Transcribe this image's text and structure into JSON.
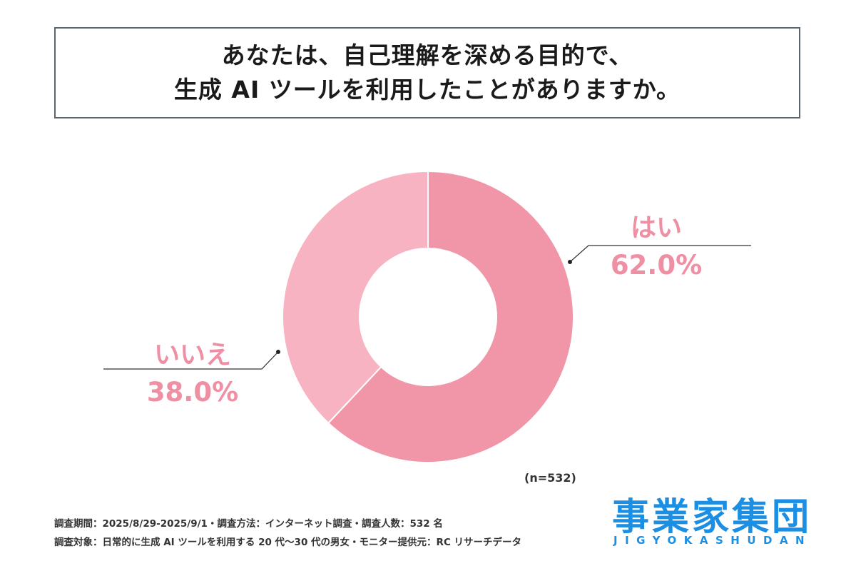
{
  "title": {
    "line1": "あなたは、自己理解を深める目的で、",
    "line2": "生成 AI ツールを利用したことがありますか。"
  },
  "chart_data": {
    "type": "pie",
    "donut": true,
    "start_angle_deg": 0,
    "direction": "clockwise",
    "slices": [
      {
        "label": "はい",
        "value": 62.0,
        "display": "62.0%",
        "color": "#f196a8"
      },
      {
        "label": "いいえ",
        "value": 38.0,
        "display": "38.0%",
        "color": "#f8b3c2"
      }
    ],
    "n_label": "(n=532)"
  },
  "footnotes": {
    "line1": "調査期間：2025/8/29-2025/9/1・調査方法：インターネット調査・調査人数：532 名",
    "line2": "調査対象：日常的に生成 AI ツールを利用する 20 代〜30 代の男女・モニター提供元：RC リサーチデータ"
  },
  "logo": {
    "kanji": "事業家集団",
    "roman": "JIGYOKASHUDAN",
    "color": "#1a8fe3"
  }
}
